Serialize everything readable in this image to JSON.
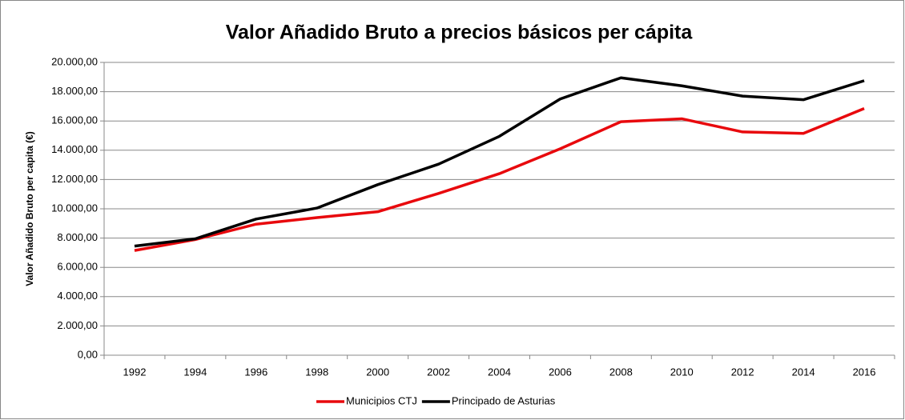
{
  "chart_data": {
    "type": "line",
    "title": "Valor Añadido Bruto a precios básicos per cápita",
    "y_label": "Valor Añadido Bruto per capita (€)",
    "categories": [
      "1992",
      "1994",
      "1996",
      "1998",
      "2000",
      "2002",
      "2004",
      "2006",
      "2008",
      "2010",
      "2012",
      "2014",
      "2016"
    ],
    "series": [
      {
        "name": "Municipios CTJ",
        "color": "#e8090d",
        "values": [
          7150,
          7900,
          8950,
          9400,
          9800,
          11050,
          12400,
          14100,
          15950,
          16150,
          15250,
          15150,
          16850
        ]
      },
      {
        "name": "Principado de Asturias",
        "color": "#000000",
        "values": [
          7450,
          7950,
          9300,
          10050,
          11650,
          13050,
          14950,
          17500,
          18950,
          18400,
          17700,
          17450,
          18750
        ]
      }
    ],
    "ylim": [
      0,
      20000
    ],
    "yticks": [
      {
        "value": 0,
        "label": "0,00"
      },
      {
        "value": 2000,
        "label": "2.000,00"
      },
      {
        "value": 4000,
        "label": "4.000,00"
      },
      {
        "value": 6000,
        "label": "6.000,00"
      },
      {
        "value": 8000,
        "label": "8.000,00"
      },
      {
        "value": 10000,
        "label": "10.000,00"
      },
      {
        "value": 12000,
        "label": "12.000,00"
      },
      {
        "value": 14000,
        "label": "14.000,00"
      },
      {
        "value": 16000,
        "label": "16.000,00"
      },
      {
        "value": 18000,
        "label": "18.000,00"
      },
      {
        "value": 20000,
        "label": "20.000,00"
      }
    ],
    "grid": true,
    "legend": "bottom"
  }
}
